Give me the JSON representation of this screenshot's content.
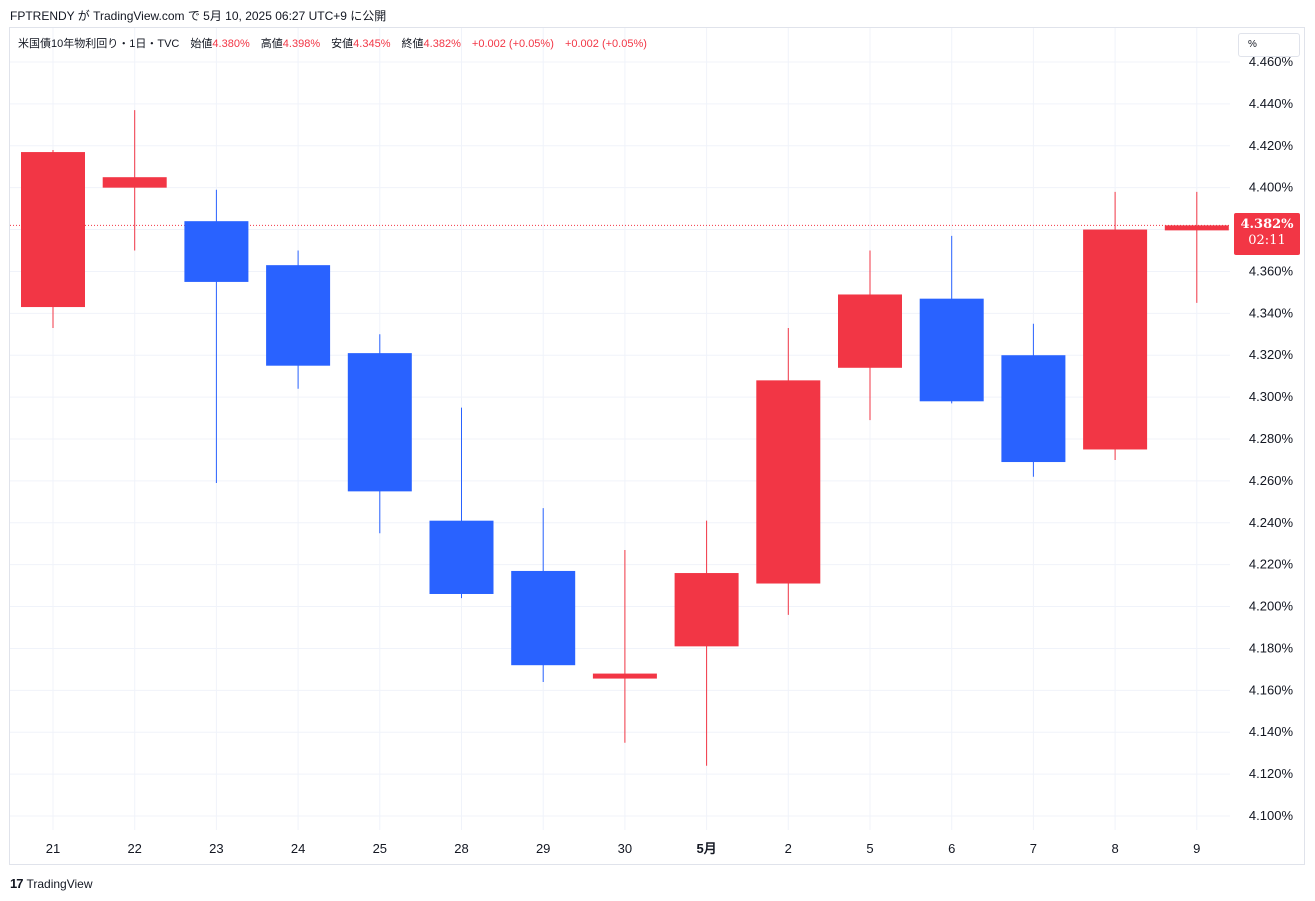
{
  "publish_line": "FPTRENDY が TradingView.com で 5月 10, 2025 06:27 UTC+9 に公開",
  "legend": {
    "symbol": "米国債10年物利回り・1日・TVC",
    "open_label": "始値",
    "open": "4.380%",
    "high_label": "高値",
    "high": "4.398%",
    "low_label": "安値",
    "low": "4.345%",
    "close_label": "終値",
    "close": "4.382%",
    "change1": "+0.002 (+0.05%)",
    "change2": "+0.002 (+0.05%)"
  },
  "unit_button": "%",
  "last_price": {
    "price": "4.382%",
    "countdown": "02:11"
  },
  "footer": {
    "logo_mark": "17",
    "logo_text": "TradingView"
  },
  "colors": {
    "up": "#f23645",
    "down": "#2962ff",
    "grid": "#f0f3fa",
    "axis_text": "#131722"
  },
  "chart_data": {
    "type": "candlestick",
    "title": "",
    "xlabel": "",
    "ylabel": "",
    "ylim": [
      4.095,
      4.463
    ],
    "y_ticks": [
      "4.100%",
      "4.120%",
      "4.140%",
      "4.160%",
      "4.180%",
      "4.200%",
      "4.220%",
      "4.240%",
      "4.260%",
      "4.280%",
      "4.300%",
      "4.320%",
      "4.340%",
      "4.360%",
      "4.380%",
      "4.400%",
      "4.420%",
      "4.440%",
      "4.460%"
    ],
    "y_tick_values": [
      4.1,
      4.12,
      4.14,
      4.16,
      4.18,
      4.2,
      4.22,
      4.24,
      4.26,
      4.28,
      4.3,
      4.32,
      4.34,
      4.36,
      4.38,
      4.4,
      4.42,
      4.44,
      4.46
    ],
    "categories": [
      "21",
      "22",
      "23",
      "24",
      "25",
      "28",
      "29",
      "30",
      "5月",
      "2",
      "5",
      "6",
      "7",
      "8",
      "9"
    ],
    "bold_categories": [
      "5月"
    ],
    "open": [
      4.343,
      4.4,
      4.384,
      4.363,
      4.321,
      4.241,
      4.217,
      4.166,
      4.181,
      4.211,
      4.314,
      4.347,
      4.32,
      4.275,
      4.38
    ],
    "high": [
      4.418,
      4.437,
      4.399,
      4.37,
      4.33,
      4.295,
      4.247,
      4.227,
      4.241,
      4.333,
      4.37,
      4.377,
      4.335,
      4.398,
      4.398
    ],
    "low": [
      4.333,
      4.37,
      4.259,
      4.304,
      4.235,
      4.204,
      4.164,
      4.135,
      4.124,
      4.196,
      4.289,
      4.297,
      4.262,
      4.27,
      4.345
    ],
    "close": [
      4.417,
      4.405,
      4.355,
      4.315,
      4.255,
      4.206,
      4.172,
      4.168,
      4.216,
      4.308,
      4.349,
      4.298,
      4.269,
      4.38,
      4.382
    ],
    "last_price_value": 4.382,
    "grid": true,
    "legend_position": "top-left"
  }
}
